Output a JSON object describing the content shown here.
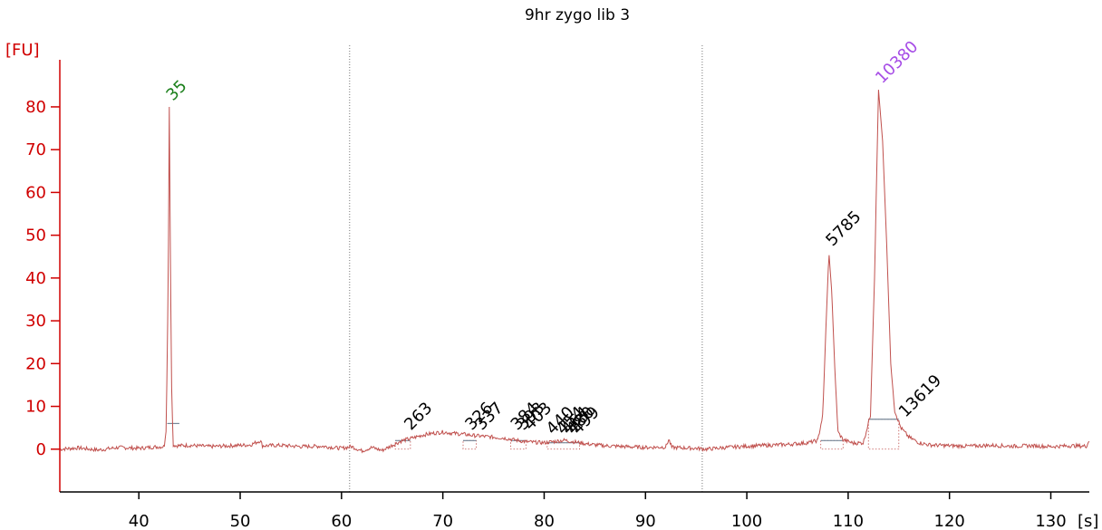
{
  "chart_data": {
    "type": "line",
    "title": "9hr zygo lib 3",
    "ylabel": "[FU]",
    "xlabel": "[s]",
    "xlim": [
      32.2,
      133.8
    ],
    "ylim": [
      -10,
      91
    ],
    "xticks": [
      40,
      50,
      60,
      70,
      80,
      90,
      100,
      110,
      120,
      130
    ],
    "yticks": [
      0,
      10,
      20,
      30,
      40,
      50,
      60,
      70,
      80
    ],
    "grid": false,
    "colors": {
      "trace": "#c0504d",
      "axis": "#d00000",
      "marker": "#1a7f1a",
      "upper_marker": "#a64ce6",
      "tick_text": "#000000",
      "baseline": "#c0504d",
      "divider": "#777777"
    },
    "dividers": [
      60.8,
      95.6
    ],
    "series": [
      {
        "points": [
          [
            32.2,
            0
          ],
          [
            34,
            0.3
          ],
          [
            36,
            -0.2
          ],
          [
            38,
            0.4
          ],
          [
            40,
            0.2
          ],
          [
            41.5,
            0.5
          ],
          [
            42.5,
            0.6
          ],
          [
            42.7,
            5
          ],
          [
            42.9,
            40
          ],
          [
            43.0,
            80
          ],
          [
            43.1,
            48
          ],
          [
            43.25,
            12
          ],
          [
            43.4,
            1
          ],
          [
            43.7,
            0.8
          ],
          [
            45,
            0.9
          ],
          [
            47,
            0.6
          ],
          [
            49,
            0.8
          ],
          [
            51,
            1.0
          ],
          [
            52,
            2.0
          ],
          [
            52.2,
            0.8
          ],
          [
            54,
            0.9
          ],
          [
            56,
            0.6
          ],
          [
            58,
            0.7
          ],
          [
            60,
            0.2
          ],
          [
            61,
            0.6
          ],
          [
            62,
            -0.4
          ],
          [
            63,
            0.4
          ],
          [
            64,
            -0.3
          ],
          [
            65,
            0.9
          ],
          [
            66,
            2.0
          ],
          [
            67,
            2.6
          ],
          [
            68,
            3.3
          ],
          [
            69,
            3.7
          ],
          [
            70,
            4.0
          ],
          [
            71,
            3.7
          ],
          [
            72,
            3.5
          ],
          [
            73,
            3.2
          ],
          [
            74,
            3.0
          ],
          [
            75,
            2.8
          ],
          [
            76,
            2.6
          ],
          [
            77,
            2.2
          ],
          [
            78,
            1.8
          ],
          [
            79,
            1.6
          ],
          [
            80,
            1.5
          ],
          [
            81,
            1.8
          ],
          [
            82,
            2.1
          ],
          [
            83,
            1.7
          ],
          [
            84,
            1.3
          ],
          [
            85,
            1.0
          ],
          [
            86,
            0.8
          ],
          [
            88,
            0.6
          ],
          [
            90,
            0.4
          ],
          [
            92,
            0.5
          ],
          [
            92.3,
            2.3
          ],
          [
            92.6,
            0.4
          ],
          [
            95,
            0.2
          ],
          [
            96,
            0.0
          ],
          [
            98,
            0.4
          ],
          [
            100,
            0.7
          ],
          [
            102,
            0.9
          ],
          [
            104,
            1.1
          ],
          [
            106,
            1.5
          ],
          [
            107,
            2.0
          ],
          [
            107.5,
            8
          ],
          [
            107.8,
            28
          ],
          [
            108.1,
            46
          ],
          [
            108.4,
            36
          ],
          [
            108.7,
            18
          ],
          [
            109,
            4
          ],
          [
            109.5,
            2.2
          ],
          [
            110.5,
            1.4
          ],
          [
            111.5,
            1.5
          ],
          [
            112.2,
            8
          ],
          [
            112.6,
            40
          ],
          [
            113.0,
            84
          ],
          [
            113.4,
            72
          ],
          [
            113.8,
            48
          ],
          [
            114.2,
            20
          ],
          [
            114.6,
            9
          ],
          [
            115.2,
            5
          ],
          [
            116,
            2.8
          ],
          [
            117,
            1.5
          ],
          [
            118,
            1.0
          ],
          [
            120,
            0.8
          ],
          [
            122,
            0.7
          ],
          [
            124,
            0.9
          ],
          [
            126,
            0.7
          ],
          [
            128,
            0.8
          ],
          [
            130,
            0.6
          ],
          [
            132,
            0.8
          ],
          [
            133.5,
            0.7
          ],
          [
            133.8,
            2.0
          ]
        ]
      }
    ],
    "annotations": [
      {
        "text": "35",
        "x": 43.0,
        "y": 80,
        "role": "lower-marker"
      },
      {
        "text": "263",
        "x": 66.5,
        "y": 3,
        "role": "peak"
      },
      {
        "text": "326",
        "x": 72.5,
        "y": 3,
        "role": "peak"
      },
      {
        "text": "337",
        "x": 73.5,
        "y": 3,
        "role": "peak"
      },
      {
        "text": "384",
        "x": 77.0,
        "y": 3,
        "role": "peak"
      },
      {
        "text": "393",
        "x": 77.6,
        "y": 3,
        "role": "peak"
      },
      {
        "text": "403",
        "x": 78.3,
        "y": 3,
        "role": "peak"
      },
      {
        "text": "440",
        "x": 80.5,
        "y": 2,
        "role": "peak"
      },
      {
        "text": "454",
        "x": 81.5,
        "y": 2,
        "role": "peak"
      },
      {
        "text": "464",
        "x": 82.0,
        "y": 2,
        "role": "peak"
      },
      {
        "text": "480",
        "x": 82.5,
        "y": 2,
        "role": "peak"
      },
      {
        "text": "499",
        "x": 83.0,
        "y": 2,
        "role": "peak"
      },
      {
        "text": "5785",
        "x": 108.1,
        "y": 46,
        "role": "peak"
      },
      {
        "text": "10380",
        "x": 113.0,
        "y": 84,
        "role": "upper-marker"
      },
      {
        "text": "13619",
        "x": 115.3,
        "y": 6,
        "role": "peak"
      }
    ]
  }
}
